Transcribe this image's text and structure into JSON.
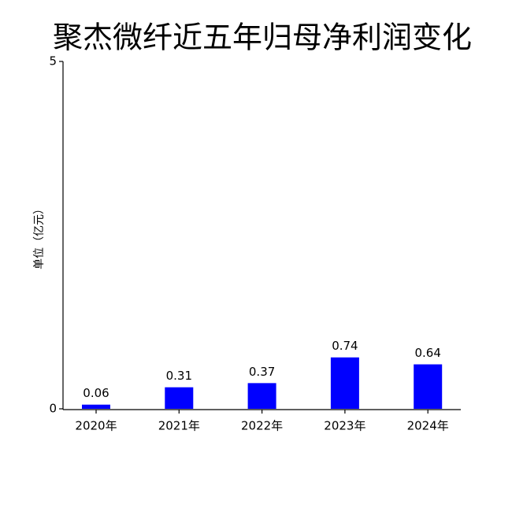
{
  "chart_data": {
    "type": "bar",
    "title": "聚杰微纤近五年归母净利润变化",
    "y_label": "单位（亿元）",
    "categories": [
      "2020年",
      "2021年",
      "2022年",
      "2023年",
      "2024年"
    ],
    "values": [
      0.06,
      0.31,
      0.37,
      0.74,
      0.64
    ],
    "color": "#0000ff",
    "ylim": [
      0,
      5
    ],
    "yticks": [
      0,
      5
    ],
    "grid": false
  }
}
